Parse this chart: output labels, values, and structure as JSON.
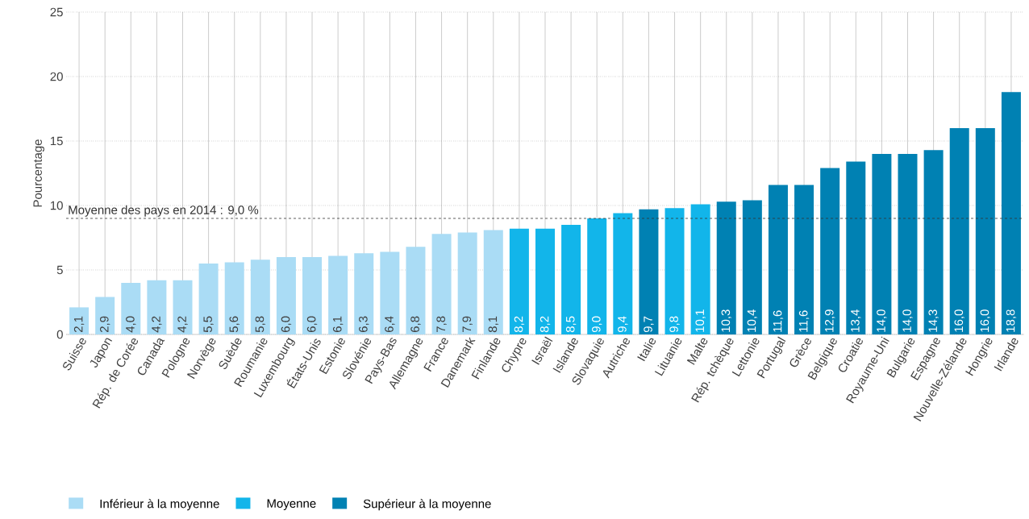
{
  "chart_data": {
    "type": "bar",
    "ylabel": "Pourcentage",
    "categories": [
      "Suisse",
      "Japon",
      "Rép. de Corée",
      "Canada",
      "Pologne",
      "Norvège",
      "Suède",
      "Roumanie",
      "Luxembourg",
      "États-Unis",
      "Estonie",
      "Slovénie",
      "Pays-Bas",
      "Allemagne",
      "France",
      "Danemark",
      "Finlande",
      "Chypre",
      "Israël",
      "Islande",
      "Slovaquie",
      "Autriche",
      "Italie",
      "Lituanie",
      "Malte",
      "Rép. tchèque",
      "Lettonie",
      "Portugal",
      "Grèce",
      "Belgique",
      "Croatie",
      "Royaume-Uni",
      "Bulgarie",
      "Espagne",
      "Nouvelle-Zélande",
      "Hongrie",
      "Irlande"
    ],
    "series": [
      {
        "name": "Inférieur à la moyenne",
        "color": "#aadcf5",
        "values": [
          2.1,
          2.9,
          4.0,
          4.2,
          4.2,
          5.5,
          5.6,
          5.8,
          6.0,
          6.0,
          6.1,
          6.3,
          6.4,
          6.8,
          7.8,
          7.9,
          8.1,
          null,
          null,
          null,
          null,
          null,
          null,
          null,
          null,
          null,
          null,
          null,
          null,
          null,
          null,
          null,
          null,
          null,
          null,
          null,
          null
        ],
        "value_labels": [
          "2,1",
          "2,9",
          "4,0",
          "4,2",
          "4,2",
          "5,5",
          "5,6",
          "5,8",
          "6,0",
          "6,0",
          "6,1",
          "6,3",
          "6,4",
          "6,8",
          "7,8",
          "7,9",
          "8,1",
          null,
          null,
          null,
          null,
          null,
          null,
          null,
          null,
          null,
          null,
          null,
          null,
          null,
          null,
          null,
          null,
          null,
          null,
          null,
          null
        ]
      },
      {
        "name": "Moyenne",
        "color": "#12b5ea",
        "values": [
          null,
          null,
          null,
          null,
          null,
          null,
          null,
          null,
          null,
          null,
          null,
          null,
          null,
          null,
          null,
          null,
          null,
          8.2,
          8.2,
          8.5,
          9.0,
          9.4,
          null,
          9.8,
          10.1,
          null,
          null,
          null,
          null,
          null,
          null,
          null,
          null,
          null,
          null,
          null,
          null
        ],
        "value_labels": [
          null,
          null,
          null,
          null,
          null,
          null,
          null,
          null,
          null,
          null,
          null,
          null,
          null,
          null,
          null,
          null,
          null,
          "8,2",
          "8,2",
          "8,5",
          "9,0",
          "9,4",
          null,
          "9,8",
          "10,1",
          null,
          null,
          null,
          null,
          null,
          null,
          null,
          null,
          null,
          null,
          null,
          null
        ]
      },
      {
        "name": "Supérieur à la moyenne",
        "color": "#0081b3",
        "values": [
          null,
          null,
          null,
          null,
          null,
          null,
          null,
          null,
          null,
          null,
          null,
          null,
          null,
          null,
          null,
          null,
          null,
          null,
          null,
          null,
          null,
          null,
          9.7,
          null,
          null,
          10.3,
          10.4,
          11.6,
          11.6,
          12.9,
          13.4,
          14.0,
          14.0,
          14.3,
          16.0,
          16.0,
          18.8
        ],
        "value_labels": [
          null,
          null,
          null,
          null,
          null,
          null,
          null,
          null,
          null,
          null,
          null,
          null,
          null,
          null,
          null,
          null,
          null,
          null,
          null,
          null,
          null,
          null,
          "9,7",
          null,
          null,
          "10,3",
          "10,4",
          "11,6",
          "11,6",
          "12,9",
          "13,4",
          "14,0",
          "14,0",
          "14,3",
          "16,0",
          "16,0",
          "18,8"
        ]
      }
    ],
    "ylim": [
      0,
      25
    ],
    "yticks": [
      0,
      5,
      10,
      15,
      20,
      25
    ],
    "grid": true,
    "legend": "bottom left",
    "ref_lines": [
      {
        "axis": "y",
        "value": 9.0,
        "label": "Moyenne des pays en 2014 : 9,0 %",
        "color": "#333333",
        "line_style": "dashed"
      }
    ]
  }
}
